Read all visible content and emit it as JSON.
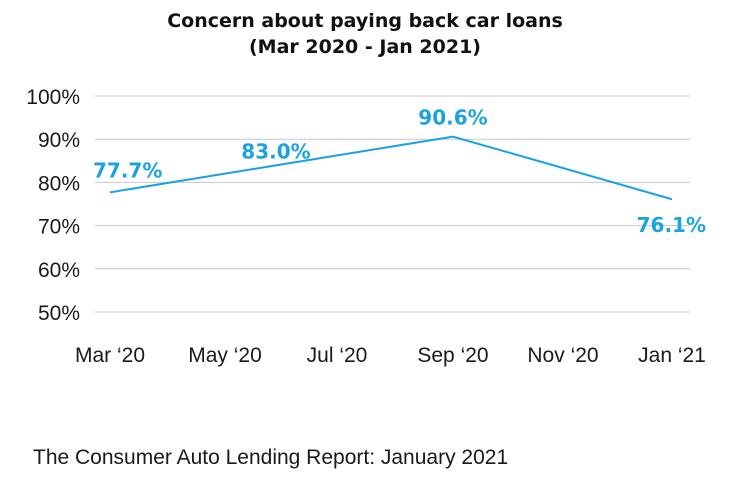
{
  "chart_data": {
    "type": "line",
    "title": "Concern about paying back car loans",
    "subtitle": "(Mar 2020 - Jan 2021)",
    "xlabel": "",
    "ylabel": "",
    "x_ticks": [
      "Mar ‘20",
      "May ‘20",
      "Jul ‘20",
      "Sep ‘20",
      "Nov ‘20",
      "Jan ‘21"
    ],
    "y_ticks": [
      "100%",
      "90%",
      "80%",
      "70%",
      "60%",
      "50%"
    ],
    "ylim": [
      50,
      100
    ],
    "grid": true,
    "series": [
      {
        "color": "#1aa3e0",
        "points": [
          {
            "x": "Mar 2020",
            "y": 77.7,
            "label": "77.7%"
          },
          {
            "x": "Sep 2020",
            "y": 90.6,
            "label": "90.6%"
          },
          {
            "x": "Jan 2021",
            "y": 76.1,
            "label": "76.1%"
          }
        ]
      }
    ],
    "annotations": [
      {
        "text": "83.0%",
        "x": "Jun 2020",
        "y": 83.0
      }
    ]
  },
  "footer": {
    "source": "The Consumer Auto Lending Report: January 2021"
  },
  "colors": {
    "line": "#1aa3e0",
    "grid": "#c8c8c8",
    "text": "#1a1a1a"
  }
}
